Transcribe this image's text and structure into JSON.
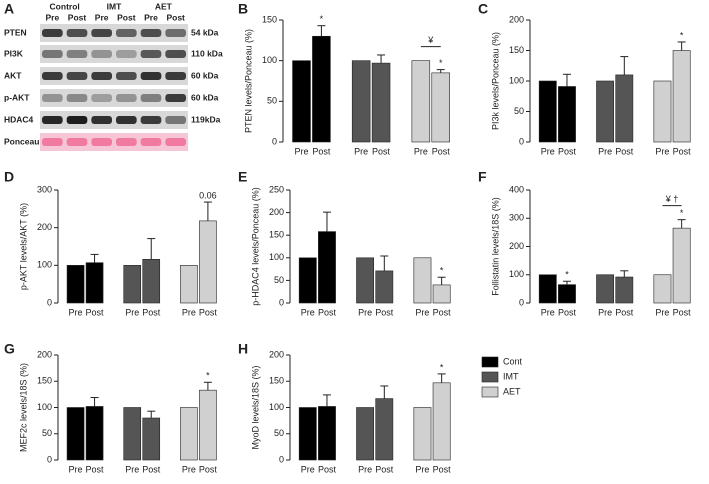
{
  "blot": {
    "label": "A",
    "groups": [
      "Control",
      "IMT",
      "AET"
    ],
    "conditions": [
      "Pre",
      "Post",
      "Pre",
      "Post",
      "Pre",
      "Post"
    ],
    "rows": [
      {
        "protein": "PTEN",
        "size": "54 kDa"
      },
      {
        "protein": "PI3K",
        "size": "110 kDa"
      },
      {
        "protein": "AKT",
        "size": "60 kDa"
      },
      {
        "protein": "p-AKT",
        "size": "60 kDa"
      },
      {
        "protein": "HDAC4",
        "size": "119kDa"
      },
      {
        "protein": "Ponceau"
      }
    ]
  },
  "legend": {
    "entries": [
      {
        "name": "Cont",
        "color": "#000000"
      },
      {
        "name": "IMT",
        "color": "#555555"
      },
      {
        "name": "AET",
        "color": "#d0d0d0"
      }
    ]
  },
  "chart_data": [
    {
      "type": "bar",
      "label": "B",
      "y_label": "PTEN levels/Ponceau (%)",
      "categories": [
        "Pre",
        "Post"
      ],
      "series": [
        {
          "color": "#000000",
          "values": [
            100,
            130
          ],
          "errors": [
            null,
            13
          ]
        },
        {
          "color": "#555555",
          "values": [
            100,
            97
          ],
          "errors": [
            null,
            10
          ]
        },
        {
          "color": "#d0d0d0",
          "values": [
            100,
            85
          ],
          "errors": [
            null,
            4
          ]
        }
      ],
      "ylim": [
        0,
        150
      ],
      "yticks": [
        0,
        50,
        100,
        150
      ],
      "annotations": [
        {
          "text": "*",
          "series": 0,
          "bar": 1
        },
        {
          "text": "¥",
          "series": 2,
          "bracket": true
        },
        {
          "text": "*",
          "series": 2,
          "bar": 1
        }
      ]
    },
    {
      "type": "bar",
      "label": "C",
      "y_label": "PI3k levels/Ponceau (%)",
      "categories": [
        "Pre",
        "Post"
      ],
      "series": [
        {
          "color": "#000000",
          "values": [
            100,
            91
          ],
          "errors": [
            null,
            20
          ]
        },
        {
          "color": "#555555",
          "values": [
            100,
            110
          ],
          "errors": [
            null,
            30
          ]
        },
        {
          "color": "#d0d0d0",
          "values": [
            100,
            150
          ],
          "errors": [
            null,
            14
          ]
        }
      ],
      "ylim": [
        0,
        200
      ],
      "yticks": [
        0,
        50,
        100,
        150,
        200
      ],
      "annotations": [
        {
          "text": "*",
          "series": 2,
          "bar": 1
        }
      ]
    },
    {
      "type": "bar",
      "label": "D",
      "y_label": "p-AKT levels/AKT (%)",
      "categories": [
        "Pre",
        "Post"
      ],
      "series": [
        {
          "color": "#000000",
          "values": [
            100,
            107
          ],
          "errors": [
            null,
            22
          ]
        },
        {
          "color": "#555555",
          "values": [
            100,
            116
          ],
          "errors": [
            null,
            55
          ]
        },
        {
          "color": "#d0d0d0",
          "values": [
            100,
            218
          ],
          "errors": [
            null,
            50
          ]
        }
      ],
      "ylim": [
        0,
        300
      ],
      "yticks": [
        0,
        100,
        200,
        300
      ],
      "annotations": [
        {
          "text": "0.06",
          "series": 2,
          "bar": 1
        }
      ]
    },
    {
      "type": "bar",
      "label": "E",
      "y_label": "p-HDAC4 levels/Ponceau (%)",
      "categories": [
        "Pre",
        "Post"
      ],
      "series": [
        {
          "color": "#000000",
          "values": [
            100,
            158
          ],
          "errors": [
            null,
            43
          ]
        },
        {
          "color": "#555555",
          "values": [
            100,
            71
          ],
          "errors": [
            null,
            33
          ]
        },
        {
          "color": "#d0d0d0",
          "values": [
            100,
            40
          ],
          "errors": [
            null,
            17
          ]
        }
      ],
      "ylim": [
        0,
        250
      ],
      "yticks": [
        0,
        50,
        100,
        150,
        200,
        250
      ],
      "annotations": [
        {
          "text": "*",
          "series": 2,
          "bar": 1
        }
      ]
    },
    {
      "type": "bar",
      "label": "F",
      "y_label": "Follistatin levels/18S (%)",
      "categories": [
        "Pre",
        "Post"
      ],
      "series": [
        {
          "color": "#000000",
          "values": [
            100,
            65
          ],
          "errors": [
            null,
            12
          ]
        },
        {
          "color": "#555555",
          "values": [
            100,
            92
          ],
          "errors": [
            null,
            22
          ]
        },
        {
          "color": "#d0d0d0",
          "values": [
            100,
            265
          ],
          "errors": [
            null,
            30
          ]
        }
      ],
      "ylim": [
        0,
        400
      ],
      "yticks": [
        0,
        100,
        200,
        300,
        400
      ],
      "annotations": [
        {
          "text": "*",
          "series": 0,
          "bar": 1
        },
        {
          "text": "¥ †",
          "series": 2,
          "bracket": true
        },
        {
          "text": "*",
          "series": 2,
          "bar": 1
        }
      ]
    },
    {
      "type": "bar",
      "label": "G",
      "y_label": "MEF2c levels/18S (%)",
      "categories": [
        "Pre",
        "Post"
      ],
      "series": [
        {
          "color": "#000000",
          "values": [
            100,
            102
          ],
          "errors": [
            null,
            17
          ]
        },
        {
          "color": "#555555",
          "values": [
            100,
            80
          ],
          "errors": [
            null,
            13
          ]
        },
        {
          "color": "#d0d0d0",
          "values": [
            100,
            133
          ],
          "errors": [
            null,
            15
          ]
        }
      ],
      "ylim": [
        0,
        200
      ],
      "yticks": [
        0,
        50,
        100,
        150,
        200
      ],
      "annotations": [
        {
          "text": "*",
          "series": 2,
          "bar": 1
        }
      ]
    },
    {
      "type": "bar",
      "label": "H",
      "y_label": "MyoD levels/18S (%)",
      "categories": [
        "Pre",
        "Post"
      ],
      "series": [
        {
          "color": "#000000",
          "values": [
            100,
            102
          ],
          "errors": [
            null,
            22
          ]
        },
        {
          "color": "#555555",
          "values": [
            100,
            117
          ],
          "errors": [
            null,
            24
          ]
        },
        {
          "color": "#d0d0d0",
          "values": [
            100,
            147
          ],
          "errors": [
            null,
            17
          ]
        }
      ],
      "ylim": [
        0,
        200
      ],
      "yticks": [
        0,
        50,
        100,
        150,
        200
      ],
      "annotations": [
        {
          "text": "*",
          "series": 2,
          "bar": 1
        }
      ]
    }
  ]
}
